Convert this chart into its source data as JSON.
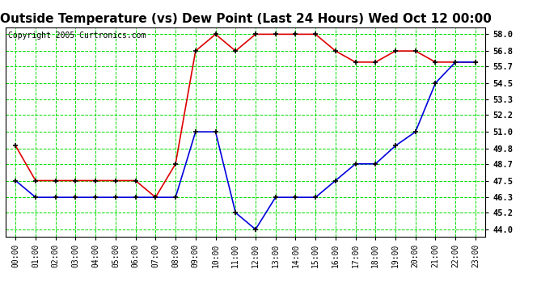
{
  "title": "Outside Temperature (vs) Dew Point (Last 24 Hours) Wed Oct 12 00:00",
  "copyright": "Copyright 2005 Curtronics.com",
  "hours": [
    0,
    1,
    2,
    3,
    4,
    5,
    6,
    7,
    8,
    9,
    10,
    11,
    12,
    13,
    14,
    15,
    16,
    17,
    18,
    19,
    20,
    21,
    22,
    23
  ],
  "red_data": [
    50.0,
    47.5,
    47.5,
    47.5,
    47.5,
    47.5,
    47.5,
    46.3,
    48.7,
    56.8,
    58.0,
    56.8,
    58.0,
    58.0,
    58.0,
    58.0,
    56.8,
    56.0,
    56.0,
    56.8,
    56.8,
    56.0,
    56.0,
    56.0
  ],
  "blue_data": [
    47.5,
    46.3,
    46.3,
    46.3,
    46.3,
    46.3,
    46.3,
    46.3,
    46.3,
    51.0,
    51.0,
    45.2,
    44.0,
    46.3,
    46.3,
    46.3,
    47.5,
    48.7,
    48.7,
    50.0,
    51.0,
    54.5,
    56.0,
    56.0
  ],
  "yticks": [
    44.0,
    45.2,
    46.3,
    47.5,
    48.7,
    49.8,
    51.0,
    52.2,
    53.3,
    54.5,
    55.7,
    56.8,
    58.0
  ],
  "ylim": [
    43.5,
    58.5
  ],
  "background_color": "#ffffff",
  "plot_bg_color": "#ffffff",
  "grid_color": "#00dd00",
  "red_color": "#dd0000",
  "blue_color": "#0000dd",
  "title_fontsize": 11,
  "copyright_fontsize": 7,
  "tick_fontsize": 7
}
